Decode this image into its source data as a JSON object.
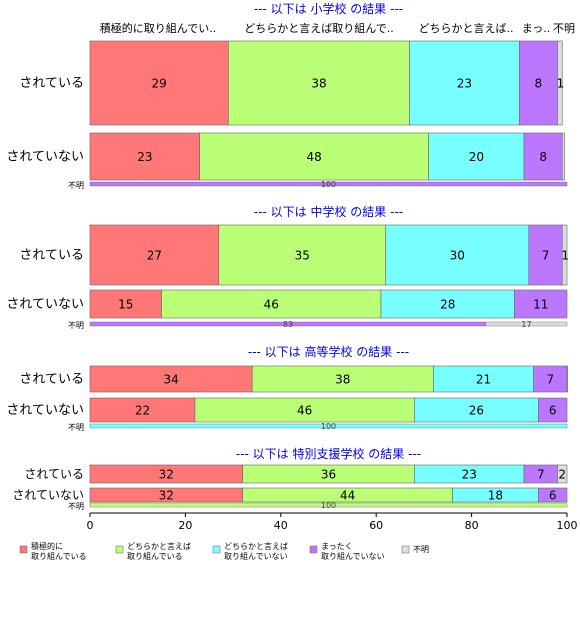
{
  "chart_data": {
    "type": "bar",
    "orientation": "horizontal",
    "stacked": true,
    "xlim": [
      0,
      100
    ],
    "x_ticks": [
      "0",
      "20",
      "40",
      "60",
      "80",
      "100"
    ],
    "column_headers": [
      "積極的に取り組んでい..",
      "どちらかと言えば取り組んで..",
      "どちらかと言えば..",
      "まっ..",
      "不明"
    ],
    "legend": [
      {
        "lines": [
          "積極的に",
          "取り組んでいる"
        ],
        "color": "#FF7777"
      },
      {
        "lines": [
          "どちらかと言えば",
          "取り組んでいる"
        ],
        "color": "#BBFF77"
      },
      {
        "lines": [
          "どちらかと言えば",
          "取り組んでいない"
        ],
        "color": "#77FFFF"
      },
      {
        "lines": [
          "まったく",
          "取り組んでいない"
        ],
        "color": "#BB77FF"
      },
      {
        "lines": [
          "不明"
        ],
        "color": "#DDDDDD"
      }
    ],
    "panels": [
      {
        "title": "--- 以下は 小学校 の結果 ---",
        "rows": [
          {
            "label": "されている",
            "values": [
              29,
              38,
              23,
              8,
              1
            ],
            "value_labels": [
              "29",
              "38",
              "23",
              "8",
              "1"
            ]
          },
          {
            "label": "されていない",
            "values": [
              23,
              48,
              20,
              8,
              0.5
            ],
            "value_labels": [
              "23",
              "48",
              "20",
              "8",
              ""
            ]
          }
        ],
        "unknown": {
          "label": "不明",
          "values": [
            100
          ],
          "value_labels": [
            "100"
          ],
          "colors": [
            "#BB77FF"
          ]
        }
      },
      {
        "title": "--- 以下は 中学校 の結果 ---",
        "rows": [
          {
            "label": "されている",
            "values": [
              27,
              35,
              30,
              7,
              1
            ],
            "value_labels": [
              "27",
              "35",
              "30",
              "7",
              "1"
            ]
          },
          {
            "label": "されていない",
            "values": [
              15,
              46,
              28,
              11,
              0
            ],
            "value_labels": [
              "15",
              "46",
              "28",
              "11",
              ""
            ]
          }
        ],
        "unknown": {
          "label": "不明",
          "values": [
            83,
            17
          ],
          "value_labels": [
            "83",
            "17"
          ],
          "colors": [
            "#BB77FF",
            "#DDDDDD"
          ]
        }
      },
      {
        "title": "--- 以下は 高等学校 の結果 ---",
        "rows": [
          {
            "label": "されている",
            "values": [
              34,
              38,
              21,
              7,
              0.5
            ],
            "value_labels": [
              "34",
              "38",
              "21",
              "7",
              ""
            ]
          },
          {
            "label": "されていない",
            "values": [
              22,
              46,
              26,
              6,
              0
            ],
            "value_labels": [
              "22",
              "46",
              "26",
              "6",
              ""
            ]
          }
        ],
        "unknown": {
          "label": "不明",
          "values": [
            100
          ],
          "value_labels": [
            "100"
          ],
          "colors": [
            "#77FFFF"
          ]
        }
      },
      {
        "title": "--- 以下は 特別支援学校 の結果 ---",
        "rows": [
          {
            "label": "されている",
            "values": [
              32,
              36,
              23,
              7,
              2
            ],
            "value_labels": [
              "32",
              "36",
              "23",
              "7",
              "2"
            ]
          },
          {
            "label": "されていない",
            "values": [
              32,
              44,
              18,
              6,
              0
            ],
            "value_labels": [
              "32",
              "44",
              "18",
              "6",
              ""
            ]
          }
        ],
        "unknown": {
          "label": "不明",
          "values": [
            100
          ],
          "value_labels": [
            "100"
          ],
          "colors": [
            "#BBFF77"
          ]
        }
      }
    ]
  }
}
